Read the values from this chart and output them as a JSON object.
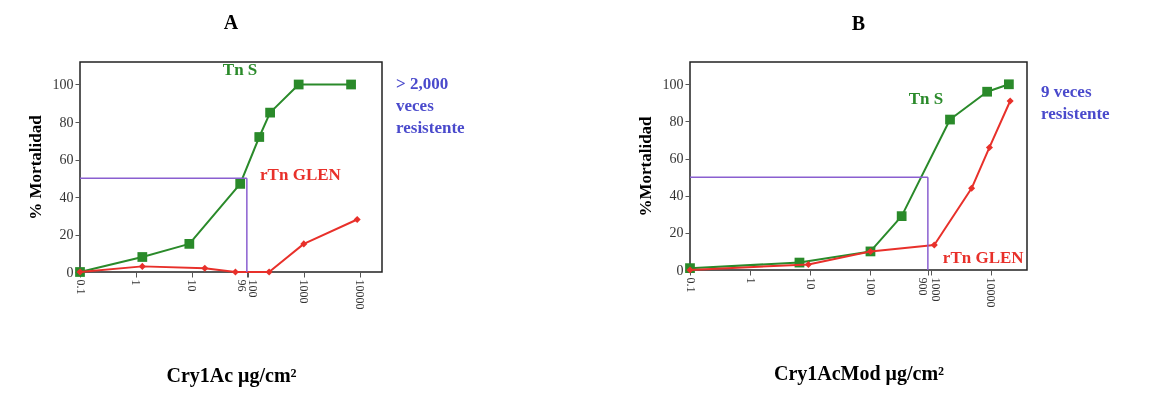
{
  "chart_data": [
    {
      "type": "line",
      "title": "A",
      "xlabel": "Cry1Ac μg/cm²",
      "ylabel": "% Mortalidad",
      "log": "x",
      "xlim": [
        0.1,
        25000
      ],
      "xticks": [
        0.1,
        1,
        10,
        96,
        100,
        1000,
        10000
      ],
      "ylim": [
        0,
        112
      ],
      "yticks": [
        0,
        20,
        40,
        60,
        80,
        100
      ],
      "grid": false,
      "marker": "square",
      "series": [
        {
          "name": "Tn S",
          "color": "#2a8a2a",
          "x": [
            0.1,
            1.3,
            9,
            73,
            160,
            250,
            810,
            7000
          ],
          "values": [
            0,
            8,
            15,
            47,
            72,
            85,
            100,
            100
          ]
        },
        {
          "name": "rTn GLEN",
          "color": "#e8302a",
          "marker": "diamond",
          "x": [
            0.1,
            1.3,
            17,
            60,
            240,
            1000,
            9000
          ],
          "values": [
            0,
            3,
            2,
            0,
            0,
            15,
            28
          ]
        }
      ],
      "ref_lines": [
        {
          "axis": "y",
          "value": 50,
          "color": "#8a5fd0"
        },
        {
          "axis": "x",
          "value": 96,
          "color": "#8a5fd0"
        }
      ],
      "annotations": [
        "> 2,000 veces resistente"
      ]
    },
    {
      "type": "line",
      "title": "B",
      "xlabel": "Cry1AcMod μg/cm²",
      "ylabel": "%Mortalidad",
      "log": "x",
      "xlim": [
        0.1,
        40000
      ],
      "xticks": [
        0.1,
        1,
        10,
        100,
        900,
        1000,
        10000
      ],
      "ylim": [
        0,
        112
      ],
      "yticks": [
        0,
        20,
        40,
        60,
        80,
        100
      ],
      "grid": false,
      "marker": "square",
      "series": [
        {
          "name": "Tn S",
          "color": "#2a8a2a",
          "x": [
            0.1,
            6.6,
            100,
            330,
            2100,
            8700,
            20000
          ],
          "values": [
            1,
            4,
            10,
            29,
            81,
            96,
            100
          ]
        },
        {
          "name": "rTn GLEN",
          "color": "#e8302a",
          "marker": "diamond",
          "x": [
            0.1,
            9.3,
            100,
            1150,
            4800,
            9500,
            21000
          ],
          "values": [
            0,
            3,
            10,
            13.5,
            44,
            66,
            91
          ]
        }
      ],
      "ref_lines": [
        {
          "axis": "y",
          "value": 50,
          "color": "#8a5fd0"
        },
        {
          "axis": "x",
          "value": 900,
          "color": "#8a5fd0"
        }
      ],
      "annotations": [
        "9 veces resistente"
      ]
    }
  ]
}
